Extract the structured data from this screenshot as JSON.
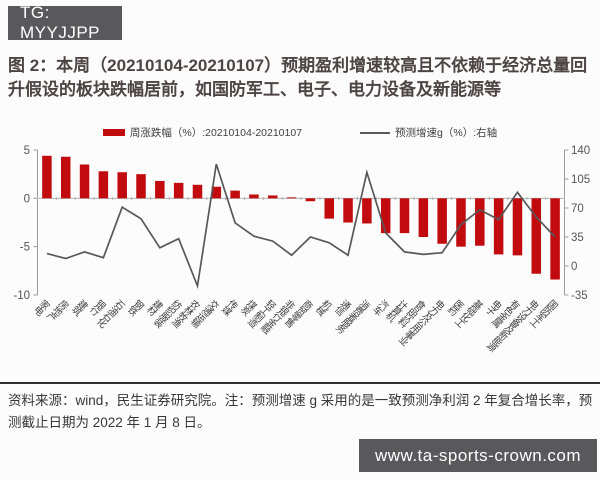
{
  "watermarks": {
    "tg_badge": "TG: MYYJJPP",
    "website": "www.ta-sports-crown.com"
  },
  "figure": {
    "title": "图 2：本周（20210104-20210107）预期盈利增速较高且不依赖于经济总量回升假设的板块跌幅居前，如国防军工、电子、电力设备及新能源等",
    "legend": {
      "bars": "周涨跌幅（%）:20210104-20210107",
      "line": "预测增速g（%）:右轴"
    },
    "source_note": "资料来源：wind，民生证券研究院。注：预测增速 g 采用的是一致预测净利润 2 年复合增长率，预测截止日期为 2022 年 1 月 8 日。"
  },
  "colors": {
    "bar": "#c20b0e",
    "line": "#58585a",
    "axis": "#9a9a9a",
    "tick_label": "#555555",
    "badge_bg": "#59595b",
    "title_text": "#4d4543"
  },
  "chart_data": {
    "type": "bar",
    "subtype": "dual-axis bar + line",
    "categories": [
      "家电",
      "房地产",
      "建筑",
      "银行",
      "石油石化",
      "钢铁",
      "建材",
      "纺织服装",
      "农林牧渔",
      "交通运输",
      "传媒",
      "煤炭",
      "轻工制造",
      "非银行金融",
      "商贸零售",
      "机械",
      "通信",
      "消费者服务",
      "汽车",
      "计算机",
      "食品饮料",
      "电力及公用事业",
      "医药",
      "基础化工",
      "电子",
      "有色金属",
      "电力设备及新能源",
      "国防军工"
    ],
    "series": [
      {
        "name": "周涨跌幅（%）:20210104-20210107",
        "type": "bar",
        "axis": "left",
        "values": [
          4.4,
          4.3,
          3.5,
          2.8,
          2.7,
          2.5,
          1.8,
          1.6,
          1.4,
          1.2,
          0.8,
          0.4,
          0.3,
          0.1,
          -0.3,
          -2.1,
          -2.5,
          -2.6,
          -3.6,
          -3.6,
          -4.0,
          -4.7,
          -5.0,
          -4.9,
          -5.8,
          -5.9,
          -7.8,
          -8.4
        ]
      },
      {
        "name": "预测增速g（%）:右轴",
        "type": "line",
        "axis": "right",
        "values": [
          15,
          9,
          17,
          10,
          71,
          57,
          22,
          33,
          -24,
          123,
          52,
          36,
          30,
          13,
          35,
          28,
          13,
          113,
          40,
          17,
          14,
          16,
          50,
          68,
          56,
          89,
          59,
          35
        ]
      }
    ],
    "left_axis": {
      "ticks": [
        5,
        0,
        -5,
        -10
      ],
      "range": [
        -10,
        5
      ]
    },
    "right_axis": {
      "ticks": [
        140,
        105,
        70,
        35,
        0,
        -35
      ],
      "range": [
        -35,
        140
      ]
    },
    "grid": "zero baseline only",
    "legend_position": "top-center",
    "xlabel": "",
    "ylabel_left": "周涨跌幅（%）",
    "ylabel_right": "预测增速g（%）"
  }
}
